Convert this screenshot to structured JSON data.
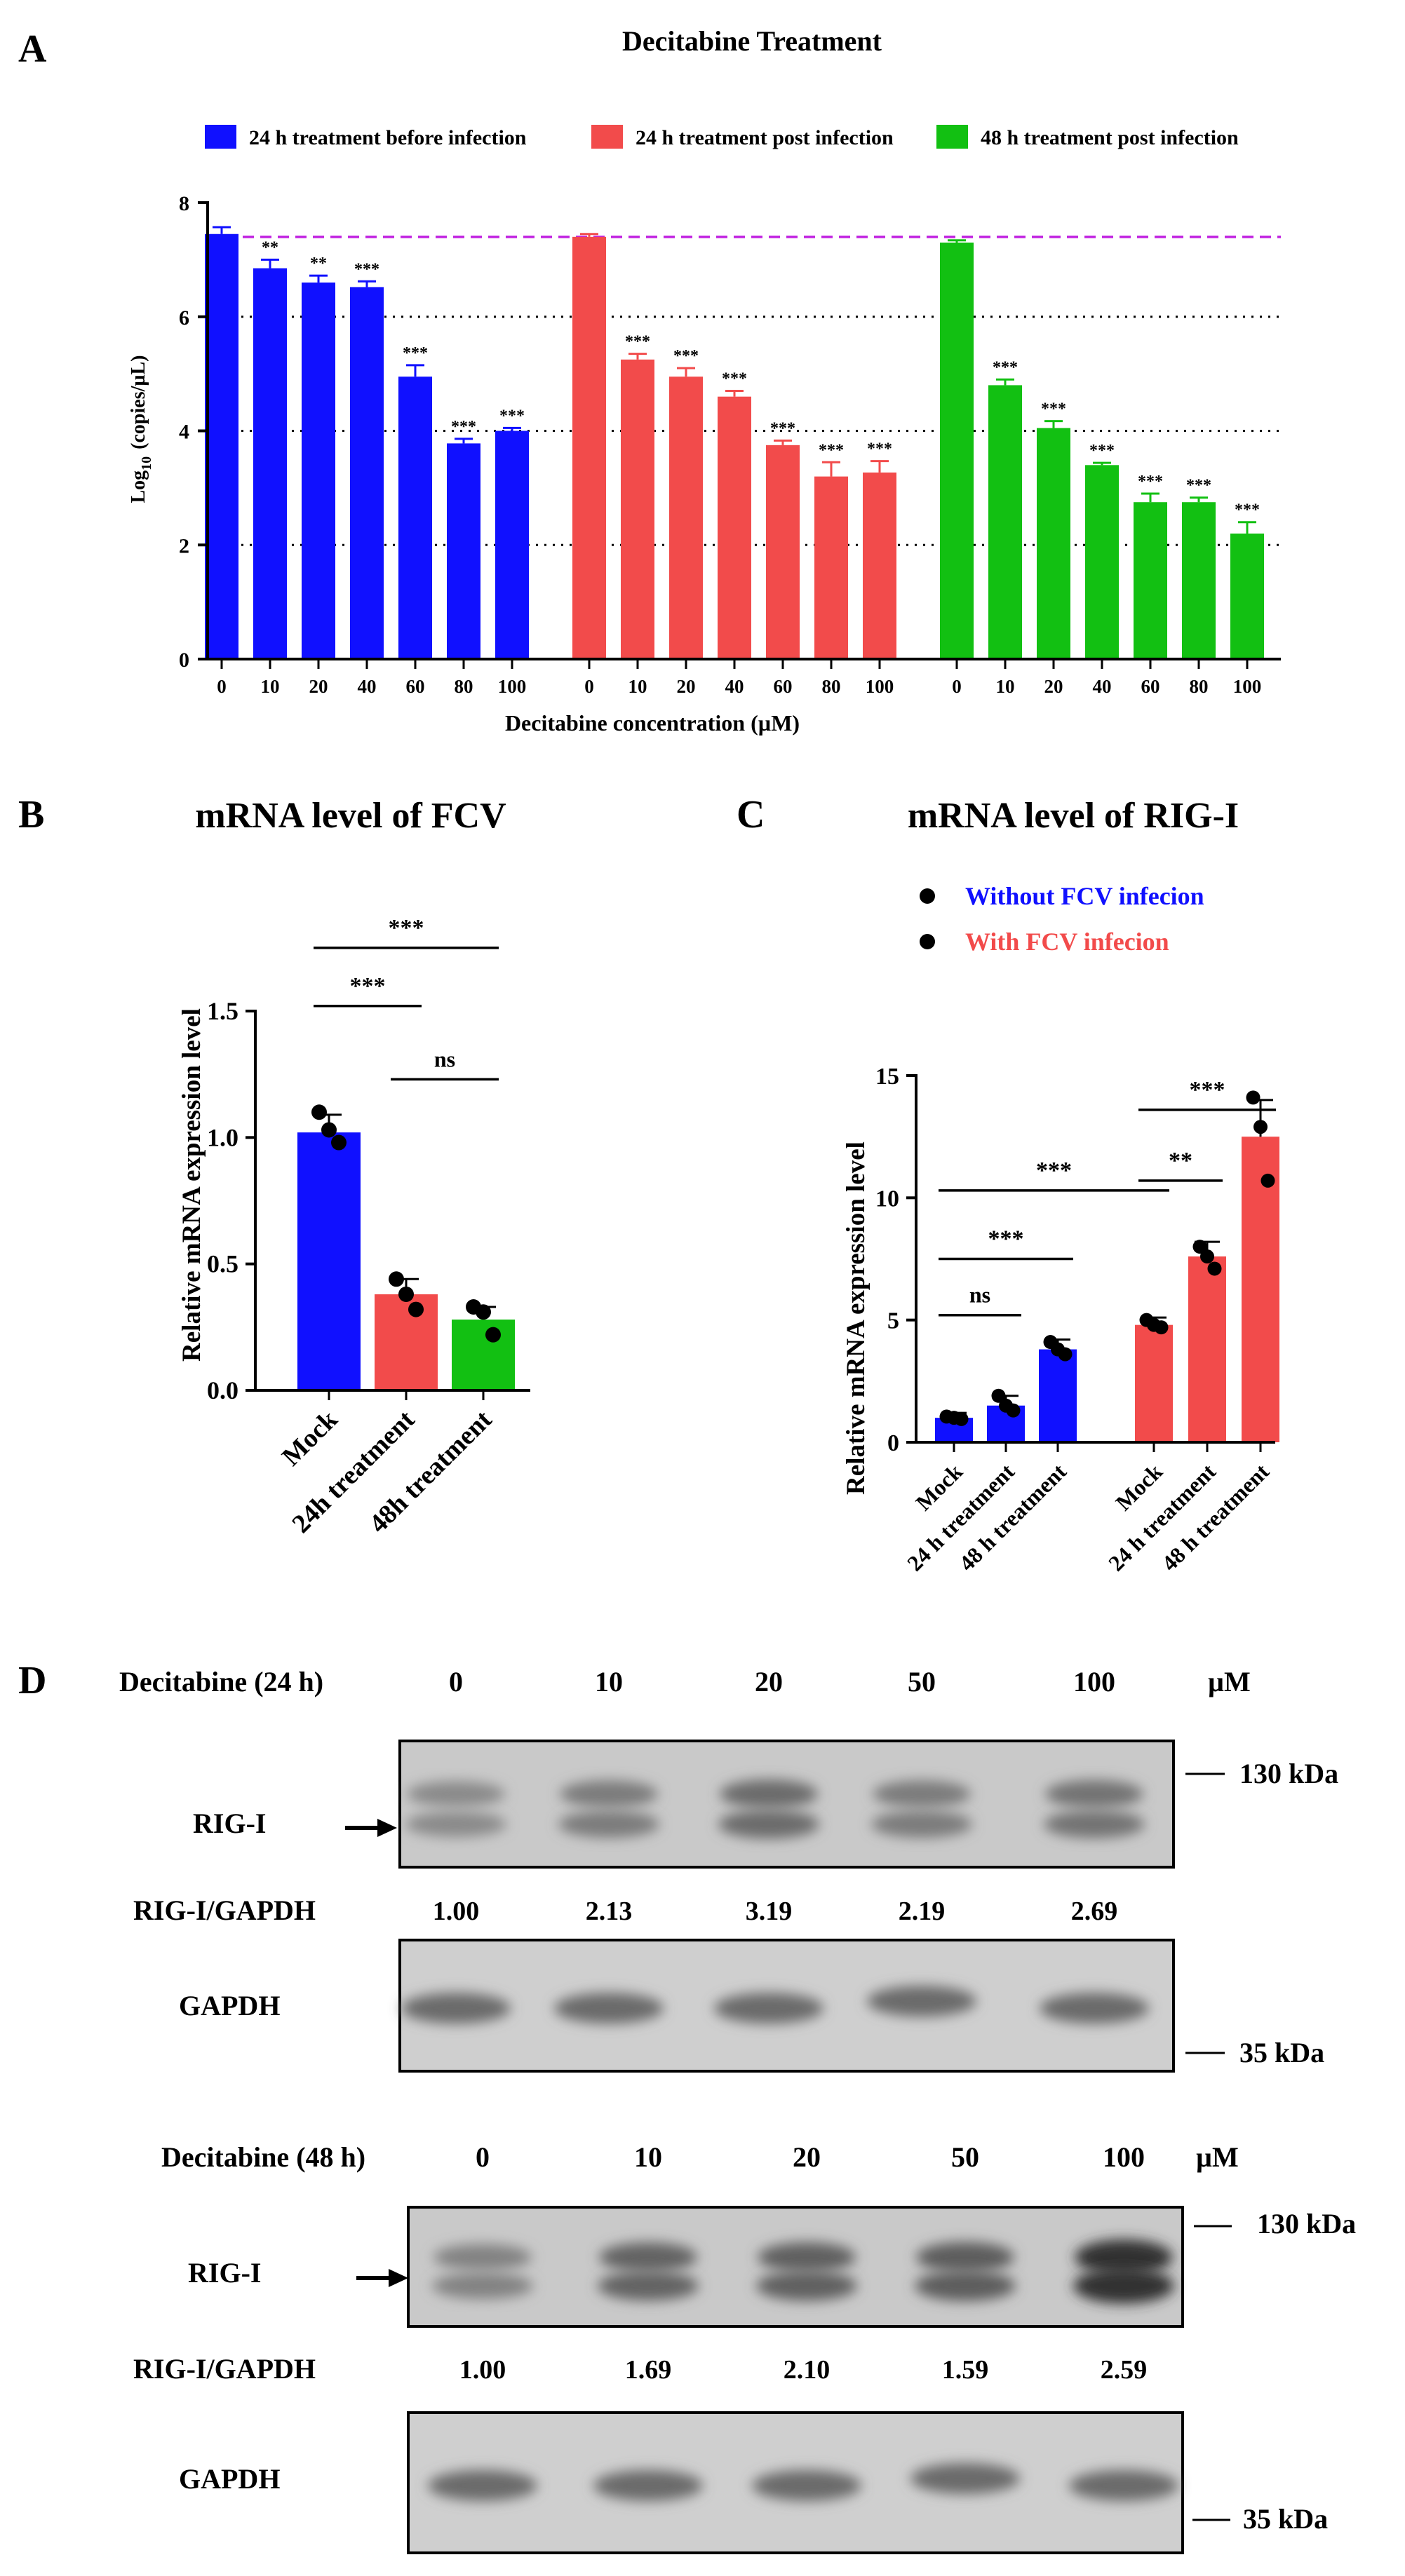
{
  "colors": {
    "blue": "#1010ff",
    "red": "#f24b4b",
    "green": "#12c012",
    "ref_line": "#c020e0"
  },
  "panel_labels": {
    "a": "A",
    "b": "B",
    "c": "C",
    "d": "D"
  },
  "chart_data": [
    {
      "id": "A",
      "type": "bar",
      "title": "Decitabine Treatment",
      "xlabel": "Decitabine concentration (µM)",
      "ylabel_main": "Log",
      "ylabel_sub": "10",
      "ylabel_rest": "(copies/µL)",
      "ylim": [
        0,
        8
      ],
      "yticks": [
        "0",
        "2",
        "4",
        "6",
        "8"
      ],
      "grid_y": [
        2,
        4,
        6
      ],
      "reference_line": 7.4,
      "categories": [
        "0",
        "10",
        "20",
        "40",
        "60",
        "80",
        "100"
      ],
      "series": [
        {
          "name": "24 h treatment before infection",
          "color": "blue",
          "values": [
            7.45,
            6.85,
            6.6,
            6.52,
            4.95,
            3.78,
            4.0
          ],
          "errors": [
            0.12,
            0.15,
            0.12,
            0.1,
            0.2,
            0.08,
            0.05
          ],
          "sig": [
            "",
            "**",
            "**",
            "***",
            "***",
            "***",
            "***"
          ]
        },
        {
          "name": "24 h treatment post infection",
          "color": "red",
          "values": [
            7.4,
            5.25,
            4.95,
            4.6,
            3.75,
            3.2,
            3.27
          ],
          "errors": [
            0.05,
            0.1,
            0.15,
            0.1,
            0.08,
            0.25,
            0.2
          ],
          "sig": [
            "",
            "***",
            "***",
            "***",
            "***",
            "***",
            "***"
          ]
        },
        {
          "name": "48 h treatment post infection",
          "color": "green",
          "values": [
            7.3,
            4.8,
            4.05,
            3.4,
            2.75,
            2.75,
            2.2
          ],
          "errors": [
            0.04,
            0.1,
            0.12,
            0.04,
            0.15,
            0.08,
            0.2
          ],
          "sig": [
            "",
            "***",
            "***",
            "***",
            "***",
            "***",
            "***"
          ]
        }
      ]
    },
    {
      "id": "B",
      "type": "bar",
      "title": "mRNA level of FCV",
      "ylabel": "Relative mRNA expression level",
      "ylim": [
        0,
        1.5
      ],
      "yticks": [
        "0.0",
        "0.5",
        "1.0",
        "1.5"
      ],
      "categories": [
        "Mock",
        "24h treatment",
        "48h treatment"
      ],
      "colors": [
        "blue",
        "red",
        "green"
      ],
      "values": [
        1.02,
        0.38,
        0.28
      ],
      "errors": [
        0.07,
        0.06,
        0.05
      ],
      "points": [
        [
          1.1,
          1.03,
          0.98
        ],
        [
          0.44,
          0.38,
          0.32
        ],
        [
          0.33,
          0.31,
          0.22
        ]
      ],
      "comparisons": [
        {
          "from": 0,
          "to": 2,
          "y": 1.75,
          "label": "***"
        },
        {
          "from": 0,
          "to": 1,
          "y": 1.52,
          "label": "***"
        },
        {
          "from": 1,
          "to": 2,
          "y": 1.23,
          "label": "ns"
        }
      ]
    },
    {
      "id": "C",
      "type": "bar",
      "title": "mRNA level of RIG-I",
      "ylabel": "Relative mRNA expression level",
      "ylim": [
        0,
        15
      ],
      "yticks": [
        "0",
        "5",
        "10",
        "15"
      ],
      "legend": [
        "Without FCV infecion",
        "With FCV infecion"
      ],
      "categories": [
        "Mock",
        "24 h treatment",
        "48 h treatment",
        "Mock",
        "24 h treatment",
        "48 h treatment"
      ],
      "colors": [
        "blue",
        "blue",
        "blue",
        "red",
        "red",
        "red"
      ],
      "values": [
        1.0,
        1.5,
        3.8,
        4.8,
        7.6,
        12.5
      ],
      "errors": [
        0.2,
        0.4,
        0.4,
        0.3,
        0.6,
        1.5
      ],
      "points": [
        [
          1.05,
          1.0,
          0.95
        ],
        [
          1.9,
          1.5,
          1.3
        ],
        [
          4.1,
          3.8,
          3.6
        ],
        [
          5.0,
          4.8,
          4.7
        ],
        [
          8.0,
          7.6,
          7.1
        ],
        [
          14.1,
          12.9,
          10.7
        ]
      ],
      "comparisons": [
        {
          "from": 0,
          "to": 1,
          "y": 5.2,
          "label": "ns"
        },
        {
          "from": 0,
          "to": 2,
          "y": 7.5,
          "label": "***"
        },
        {
          "from": 0,
          "to": 3,
          "y": 10.3,
          "label": "***"
        },
        {
          "from": 3,
          "to": 4,
          "y": 10.7,
          "label": "**"
        },
        {
          "from": 3,
          "to": 5,
          "y": 13.6,
          "label": "***"
        }
      ]
    }
  ],
  "western_blots": [
    {
      "header_label": "Decitabine (24 h)",
      "concentrations": [
        "0",
        "10",
        "20",
        "50",
        "100"
      ],
      "unit": "µM",
      "rig_label": "RIG-I",
      "ratio_label": "RIG-I/GAPDH",
      "ratios": [
        "1.00",
        "2.13",
        "3.19",
        "2.19",
        "2.69"
      ],
      "gapdh_label": "GAPDH",
      "marker_top": "130 kDa",
      "marker_bottom": "35 kDa",
      "rig_intensity": [
        0.35,
        0.45,
        0.55,
        0.45,
        0.5
      ]
    },
    {
      "header_label": "Decitabine (48 h)",
      "concentrations": [
        "0",
        "10",
        "20",
        "50",
        "100"
      ],
      "unit": "µM",
      "rig_label": "RIG-I",
      "ratio_label": "RIG-I/GAPDH",
      "ratios": [
        "1.00",
        "1.69",
        "2.10",
        "1.59",
        "2.59"
      ],
      "gapdh_label": "GAPDH",
      "marker_top": "130 kDa",
      "marker_bottom": "35 kDa",
      "rig_intensity": [
        0.4,
        0.6,
        0.62,
        0.65,
        0.95
      ]
    }
  ]
}
